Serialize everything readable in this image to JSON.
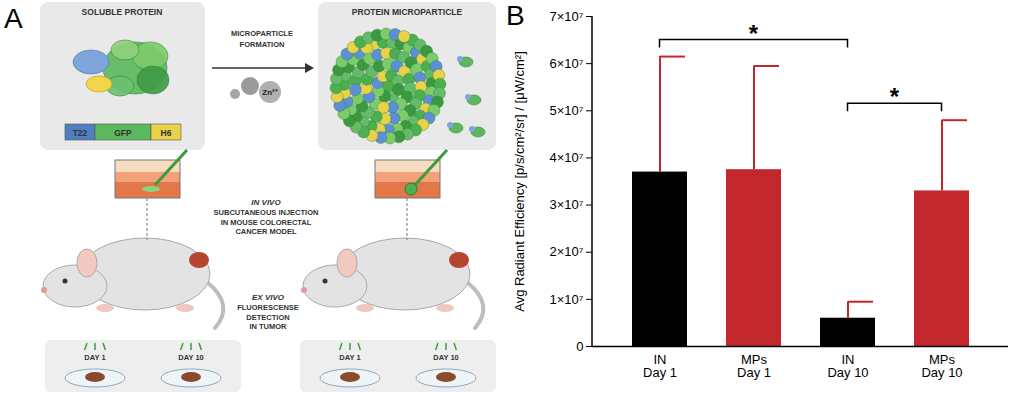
{
  "chart_data": {
    "type": "bar",
    "panel_label": "B",
    "categories": [
      "IN\nDay 1",
      "MPs\nDay 1",
      "IN\nDay 10",
      "MPs\nDay 10"
    ],
    "values": [
      37000000,
      37500000,
      6000000,
      33000000
    ],
    "errors": [
      24500000,
      22000000,
      3500000,
      15000000
    ],
    "colors": [
      "#000000",
      "#c1272d",
      "#000000",
      "#c1272d"
    ],
    "y_label": "Avg Radiant Efficiency [p/s/cm²/sr] / [μW/cm²]",
    "ylim": [
      0,
      70000000
    ],
    "yticks": [
      0,
      {
        "value": 10000000,
        "label": "1×10⁷"
      },
      {
        "value": 20000000,
        "label": "2×10⁷"
      },
      {
        "value": 30000000,
        "label": "3×10⁷"
      },
      {
        "value": 40000000,
        "label": "4×10⁷"
      },
      {
        "value": 50000000,
        "label": "5×10⁷"
      },
      {
        "value": 60000000,
        "label": "6×10⁷"
      },
      {
        "value": 70000000,
        "label": "7×10⁷"
      }
    ],
    "grid": false,
    "annotations": [
      {
        "text": "*",
        "between": [
          "IN\nDay 1",
          "IN\nDay 10"
        ]
      },
      {
        "text": "*",
        "between": [
          "IN\nDay 10",
          "MPs\nDay 10"
        ]
      }
    ]
  },
  "diagram": {
    "label": "A",
    "soluble": {
      "title": "SOLUBLE PROTEIN",
      "domains": [
        "T22",
        "GFP",
        "H6"
      ]
    },
    "process": {
      "label": [
        "MICROPARTICLE",
        "FORMATION"
      ],
      "ion": "Zn²⁺"
    },
    "microparticle": {
      "title": "PROTEIN MICROPARTICLE"
    },
    "injection": {
      "heading": "IN VIVO",
      "lines": [
        "SUBCUTANEOUS INJECTION",
        "IN MOUSE COLORECTAL",
        "CANCER MODEL"
      ]
    },
    "detection": {
      "heading": "EX VIVO",
      "lines": [
        "FLUORESCENSE",
        "DETECTION",
        "IN TUMOR"
      ]
    },
    "days": [
      "DAY 1",
      "DAY 10"
    ]
  }
}
